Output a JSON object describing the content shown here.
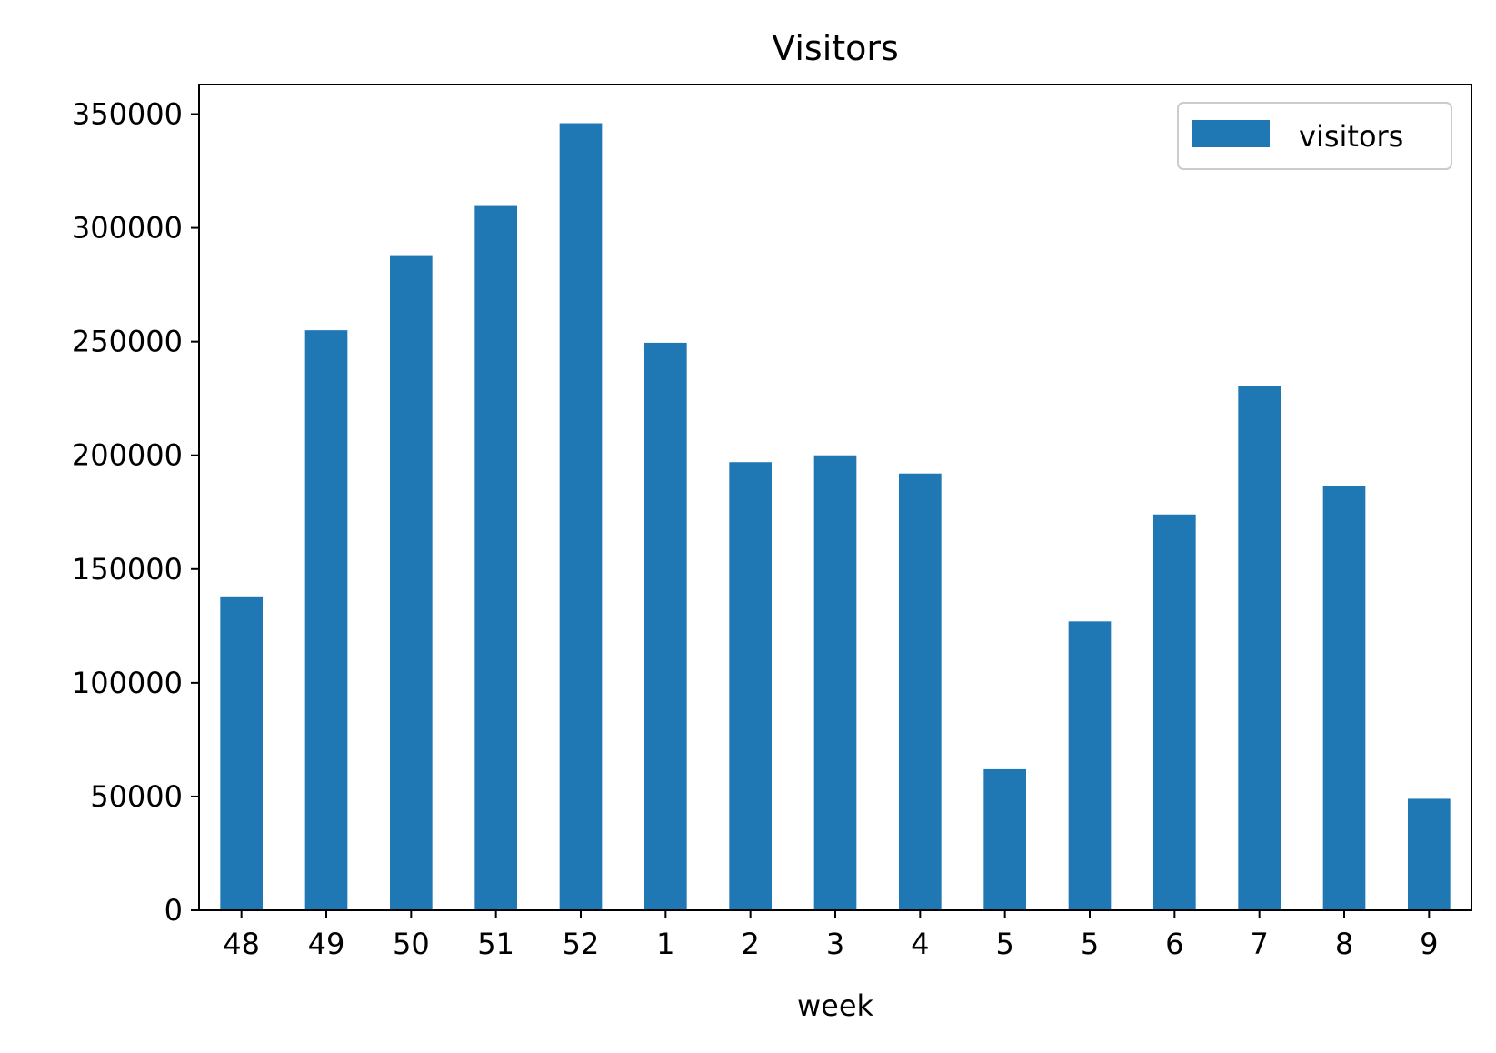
{
  "chart_data": {
    "type": "bar",
    "title": "Visitors",
    "xlabel": "week",
    "ylabel": "",
    "categories": [
      "48",
      "49",
      "50",
      "51",
      "52",
      "1",
      "2",
      "3",
      "4",
      "5",
      "5",
      "6",
      "7",
      "8",
      "9"
    ],
    "series": [
      {
        "name": "visitors",
        "color": "#1f77b4",
        "values": [
          138000,
          255000,
          288000,
          310000,
          346000,
          249500,
          197000,
          200000,
          192000,
          62000,
          127000,
          174000,
          230500,
          186500,
          49000
        ]
      }
    ],
    "ylim": [
      0,
      363000
    ],
    "yticks": [
      0,
      50000,
      100000,
      150000,
      200000,
      250000,
      300000,
      350000
    ],
    "legend": {
      "position": "top-right"
    },
    "grid": false
  }
}
